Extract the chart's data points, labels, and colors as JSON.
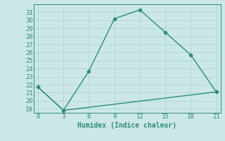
{
  "line1_x": [
    0,
    3,
    6,
    9,
    12,
    15,
    18,
    21
  ],
  "line1_y": [
    21.7,
    18.8,
    23.7,
    30.2,
    31.3,
    28.5,
    25.7,
    21.1
  ],
  "line2_x": [
    0,
    3,
    21
  ],
  "line2_y": [
    21.7,
    18.8,
    21.1
  ],
  "line_color": "#2e8b7a",
  "bg_color": "#cce8e6",
  "grid_color": "#aed4d1",
  "xlabel": "Humidex (Indice chaleur)",
  "ylim": [
    18.5,
    32
  ],
  "xlim": [
    -0.5,
    21.5
  ],
  "xticks": [
    0,
    3,
    6,
    9,
    12,
    15,
    18,
    21
  ],
  "yticks": [
    19,
    20,
    21,
    22,
    23,
    24,
    25,
    26,
    27,
    28,
    29,
    30,
    31
  ],
  "xlabel_fontsize": 7,
  "tick_fontsize": 6.5,
  "linewidth": 1.0,
  "marker": "D",
  "markersize": 2.5
}
